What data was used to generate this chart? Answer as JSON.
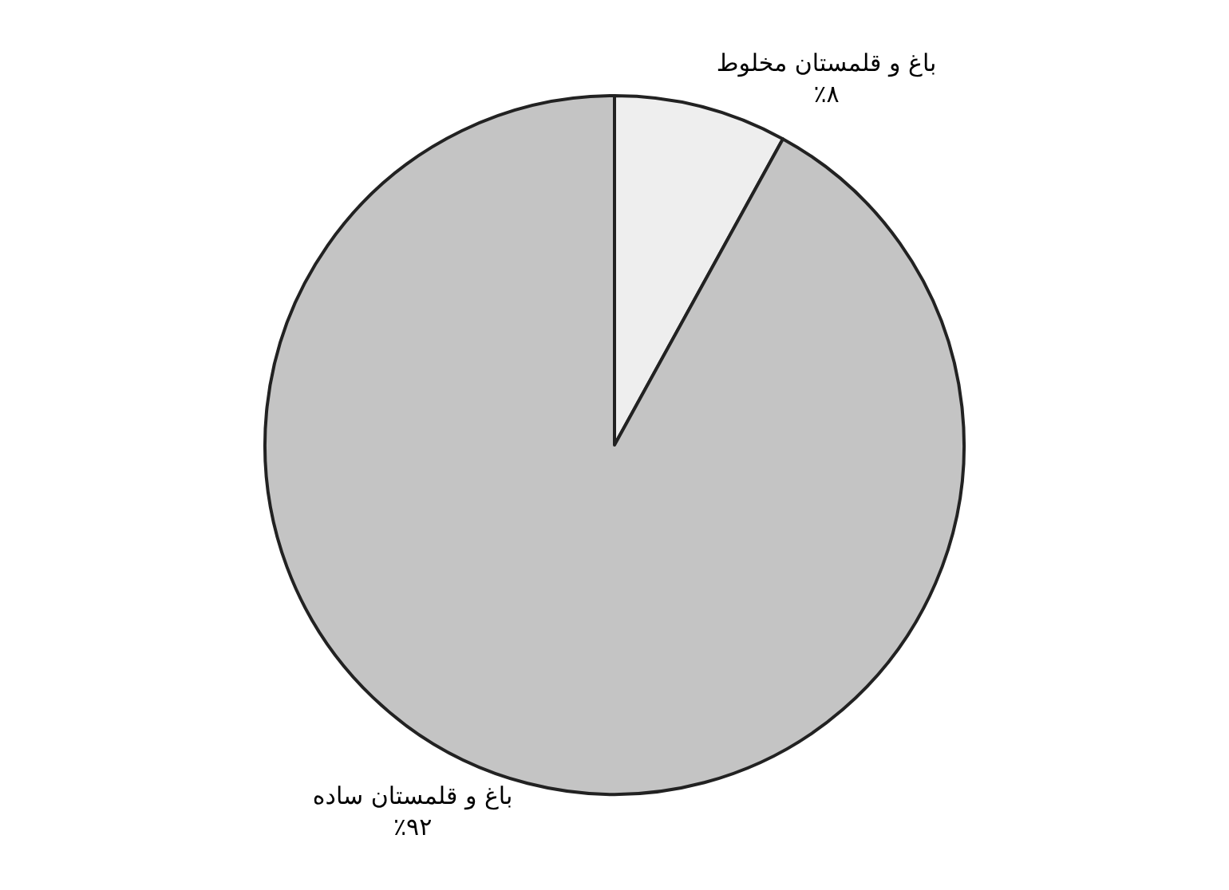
{
  "chart_data": {
    "type": "pie",
    "categories": [
      "باغ و قلمستان مخلوط",
      "باغ و قلمستان ساده"
    ],
    "values": [
      8,
      92
    ],
    "value_labels": [
      "٪۸",
      "٪۹۲"
    ],
    "colors": [
      "#eeeeee",
      "#c4c4c4"
    ],
    "legend": false
  }
}
